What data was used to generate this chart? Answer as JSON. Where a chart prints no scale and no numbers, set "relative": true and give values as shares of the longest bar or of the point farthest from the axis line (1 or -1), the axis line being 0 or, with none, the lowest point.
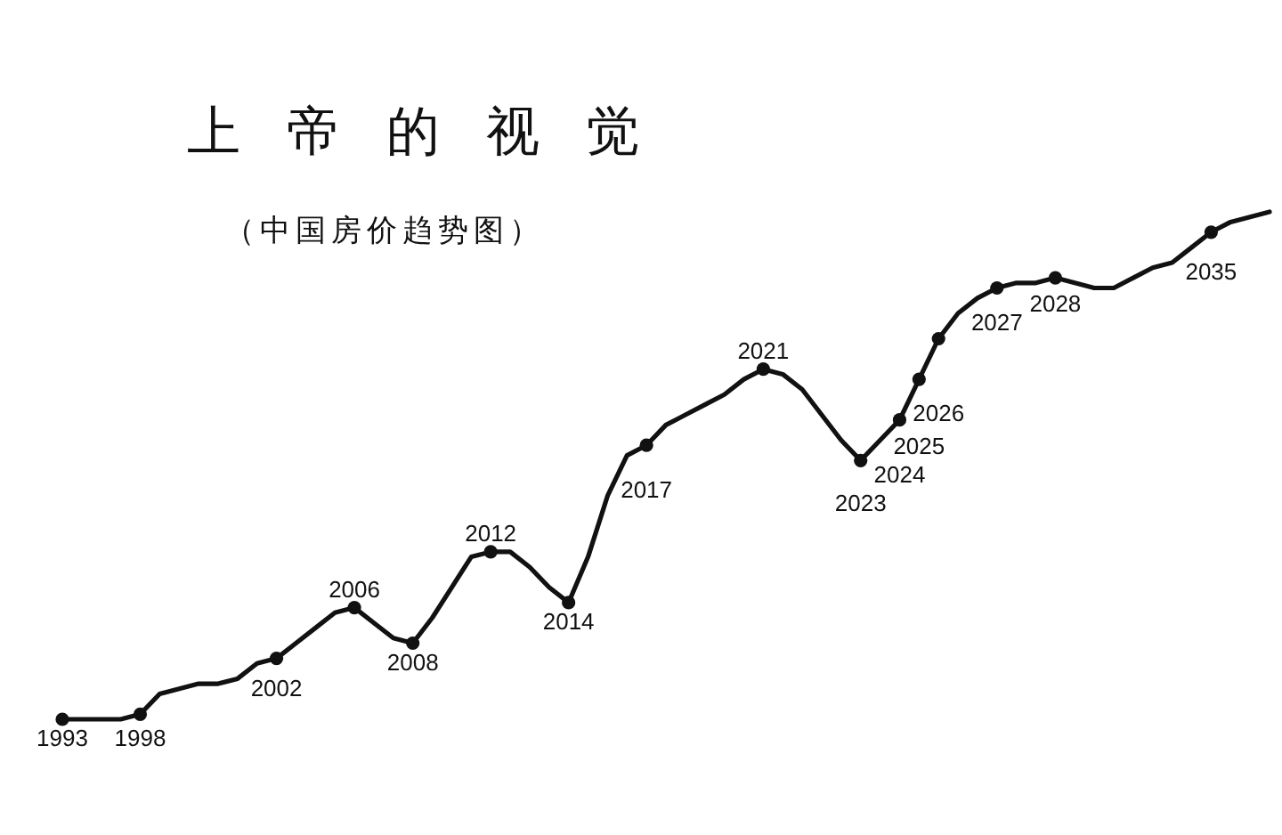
{
  "chart_data": {
    "type": "line",
    "title": "上帝的视觉",
    "subtitle": "（中国房价趋势图）",
    "relative": true,
    "color": "#111111",
    "line_style": "solid",
    "categories": [
      null,
      null,
      null,
      null,
      null,
      null,
      null,
      null,
      null,
      null,
      null,
      null,
      null,
      null,
      null,
      null,
      null,
      null,
      null,
      null,
      null,
      null,
      null,
      null,
      null,
      null,
      null,
      null,
      null,
      null,
      null,
      null,
      null,
      null,
      null,
      null,
      null,
      null,
      null,
      null,
      null,
      null,
      null,
      null,
      null,
      null,
      null,
      null,
      null,
      null,
      null,
      null,
      null,
      null,
      null,
      null,
      null,
      null,
      null,
      null,
      null,
      null,
      null
    ],
    "values": [
      0,
      0,
      0,
      0,
      0.01,
      0.05,
      0.06,
      0.07,
      0.07,
      0.08,
      0.11,
      0.12,
      0.15,
      0.18,
      0.21,
      0.22,
      0.19,
      0.16,
      0.15,
      0.2,
      0.26,
      0.32,
      0.33,
      0.33,
      0.3,
      0.26,
      0.23,
      0.32,
      0.44,
      0.52,
      0.54,
      0.58,
      0.6,
      0.62,
      0.64,
      0.67,
      0.69,
      0.68,
      0.65,
      0.6,
      0.55,
      0.51,
      0.55,
      0.59,
      0.67,
      0.75,
      0.8,
      0.83,
      0.85,
      0.86,
      0.86,
      0.87,
      0.86,
      0.85,
      0.85,
      0.87,
      0.89,
      0.9,
      0.93,
      0.96,
      0.98,
      0.99,
      1
    ],
    "annotations": [
      {
        "text": "1993",
        "y": 0
      },
      {
        "text": "1998",
        "y": 0.01
      },
      {
        "text": "2002",
        "y": 0.12
      },
      {
        "text": "2006",
        "y": 0.22
      },
      {
        "text": "2008",
        "y": 0.15
      },
      {
        "text": "2012",
        "y": 0.33
      },
      {
        "text": "2014",
        "y": 0.23
      },
      {
        "text": "2017",
        "y": 0.54
      },
      {
        "text": "2021",
        "y": 0.69
      },
      {
        "text": "2023",
        "y": 0.51
      },
      {
        "text": "2024",
        "y": 0.59
      },
      {
        "text": "2025",
        "y": 0.67
      },
      {
        "text": "2026",
        "y": 0.75
      },
      {
        "text": "2027",
        "y": 0.85
      },
      {
        "text": "2028",
        "y": 0.87
      },
      {
        "text": "2035",
        "y": 0.96
      }
    ]
  }
}
